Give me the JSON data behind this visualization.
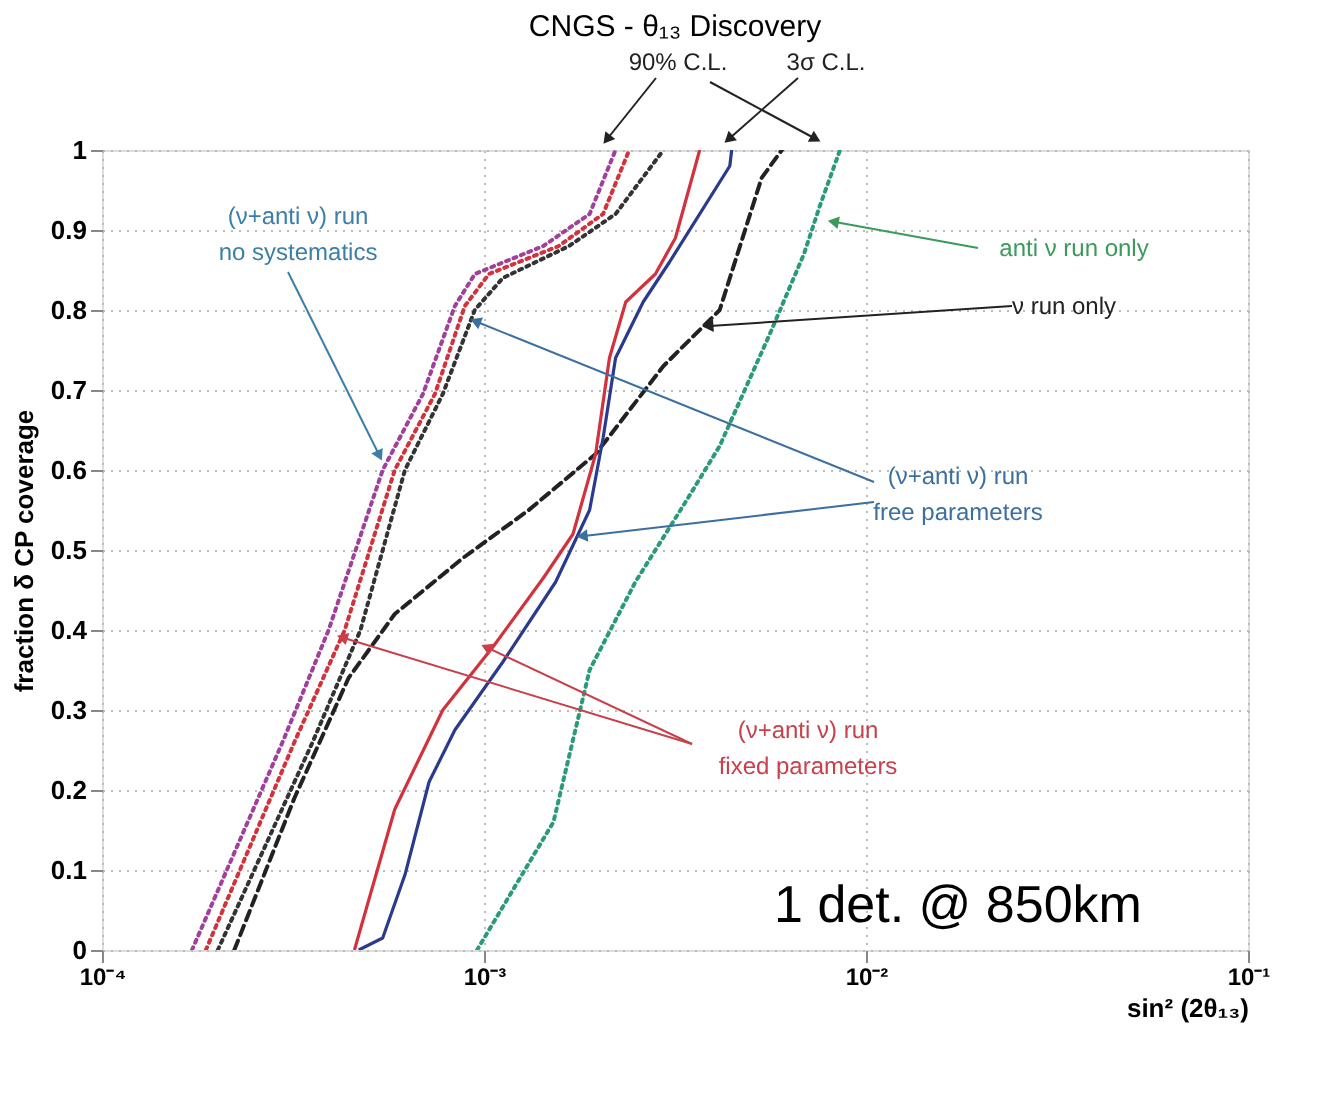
{
  "chart_data": {
    "type": "line",
    "title": "CNGS - θ₁₃ Discovery",
    "xlabel": "sin² (2θ₁₃)",
    "ylabel": "fraction δ CP coverage",
    "log": "x",
    "grid": true,
    "xlim": [
      0.0001,
      0.1
    ],
    "xticks": [
      {
        "value": 0.0001,
        "label": "10⁻⁴"
      },
      {
        "value": 0.001,
        "label": "10⁻³"
      },
      {
        "value": 0.01,
        "label": "10⁻²"
      },
      {
        "value": 0.1,
        "label": "10⁻¹"
      }
    ],
    "ylim": [
      0,
      1
    ],
    "yticks": [
      0,
      0.1,
      0.2,
      0.3,
      0.4,
      0.5,
      0.6,
      0.7,
      0.8,
      0.9,
      1
    ],
    "series": [
      {
        "color": "#a0409a",
        "line_style": "dotted",
        "x": [
          0.000172,
          0.000297,
          0.000392,
          0.000543,
          0.000692,
          0.000839,
          0.000946,
          0.00143,
          0.00189,
          0.00221
        ],
        "values": [
          0,
          0.26,
          0.4,
          0.6,
          0.695,
          0.805,
          0.845,
          0.88,
          0.92,
          1.0
        ]
      },
      {
        "color": "#d2323c",
        "line_style": "dotted",
        "x": [
          0.000187,
          0.000319,
          0.000432,
          0.000584,
          0.000744,
          0.000891,
          0.00103,
          0.00157,
          0.00205,
          0.0024
        ],
        "values": [
          0,
          0.26,
          0.4,
          0.6,
          0.695,
          0.805,
          0.845,
          0.88,
          0.92,
          1.0
        ]
      },
      {
        "color": "#333333",
        "line_style": "dotted",
        "x": [
          0.000201,
          0.000356,
          0.000475,
          0.000621,
          0.00078,
          0.000946,
          0.00112,
          0.00167,
          0.00221,
          0.00295
        ],
        "values": [
          0,
          0.26,
          0.4,
          0.6,
          0.695,
          0.8,
          0.84,
          0.88,
          0.92,
          1.0
        ]
      },
      {
        "color": "#222222",
        "line_style": "dashed",
        "x": [
          0.000222,
          0.000319,
          0.000442,
          0.000584,
          0.000881,
          0.00131,
          0.00196,
          0.00295,
          0.00414,
          0.00533,
          0.00602
        ],
        "values": [
          0,
          0.19,
          0.34,
          0.42,
          0.49,
          0.55,
          0.62,
          0.73,
          0.8,
          0.965,
          1.0
        ]
      },
      {
        "color": "#2a9a7a",
        "line_style": "dotted",
        "x": [
          0.000959,
          0.00152,
          0.00189,
          0.00249,
          0.00337,
          0.00414,
          0.0056,
          0.00688,
          0.00757,
          0.00855
        ],
        "values": [
          0,
          0.16,
          0.35,
          0.46,
          0.56,
          0.63,
          0.77,
          0.87,
          0.93,
          1.0
        ]
      },
      {
        "color": "#d2323c",
        "line_style": "solid",
        "x": [
          0.000458,
          0.000584,
          0.00078,
          0.00106,
          0.00143,
          0.00171,
          0.00196,
          0.00213,
          0.00235,
          0.00281,
          0.00317,
          0.00367
        ],
        "values": [
          0,
          0.176,
          0.3,
          0.38,
          0.465,
          0.52,
          0.62,
          0.74,
          0.81,
          0.845,
          0.89,
          1.0
        ]
      },
      {
        "color": "#2a3a8c",
        "line_style": "solid",
        "x": [
          0.00047,
          0.000543,
          0.000621,
          0.000718,
          0.000839,
          0.00112,
          0.00154,
          0.00189,
          0.00205,
          0.00221,
          0.00261,
          0.00306,
          0.0044,
          0.00445
        ],
        "values": [
          0,
          0.015,
          0.094,
          0.21,
          0.275,
          0.36,
          0.46,
          0.55,
          0.64,
          0.74,
          0.81,
          0.86,
          0.98,
          1.0
        ]
      }
    ],
    "annotations": [
      "90% C.L.",
      "3σ C.L.",
      {
        "text": "(ν+anti ν) run\nno systematics",
        "x": 0.00053,
        "y": 0.62
      },
      {
        "text": "anti ν run only",
        "x": 0.0083,
        "y": 0.91
      },
      {
        "text": "ν run only",
        "x": 0.0039,
        "y": 0.78
      },
      {
        "text": "(ν+anti ν) run\nfree parameters",
        "x": 0.00096,
        "y": 0.785
      },
      {
        "text": "(ν+anti ν) run\nfixed parameters",
        "x": 0.00043,
        "y": 0.39
      },
      "1 det. @ 850km"
    ]
  }
}
